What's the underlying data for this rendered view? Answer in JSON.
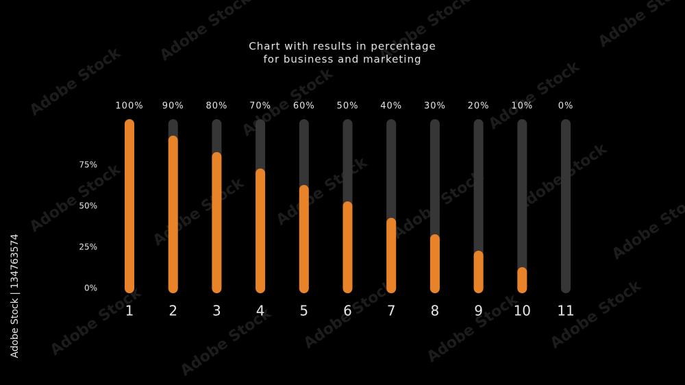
{
  "chart_data": {
    "type": "bar",
    "title": "Chart with results in percentage",
    "subtitle": "for business and marketing",
    "categories": [
      "1",
      "2",
      "3",
      "4",
      "5",
      "6",
      "7",
      "8",
      "9",
      "10",
      "11"
    ],
    "values": [
      100,
      90,
      80,
      70,
      60,
      50,
      40,
      30,
      20,
      10,
      0
    ],
    "value_labels": [
      "100%",
      "90%",
      "80%",
      "70%",
      "60%",
      "50%",
      "40%",
      "30%",
      "20%",
      "10%",
      "0%"
    ],
    "color": "#e8832a",
    "track_color": "#363636",
    "ylim": [
      0,
      100
    ],
    "yticks": [
      {
        "value": 0,
        "label": "0%"
      },
      {
        "value": 25,
        "label": "25%"
      },
      {
        "value": 50,
        "label": "50%"
      },
      {
        "value": 75,
        "label": "75%"
      }
    ],
    "grid": false
  },
  "watermark": "Adobe Stock",
  "side_text": "Adobe Stock | 134763574"
}
